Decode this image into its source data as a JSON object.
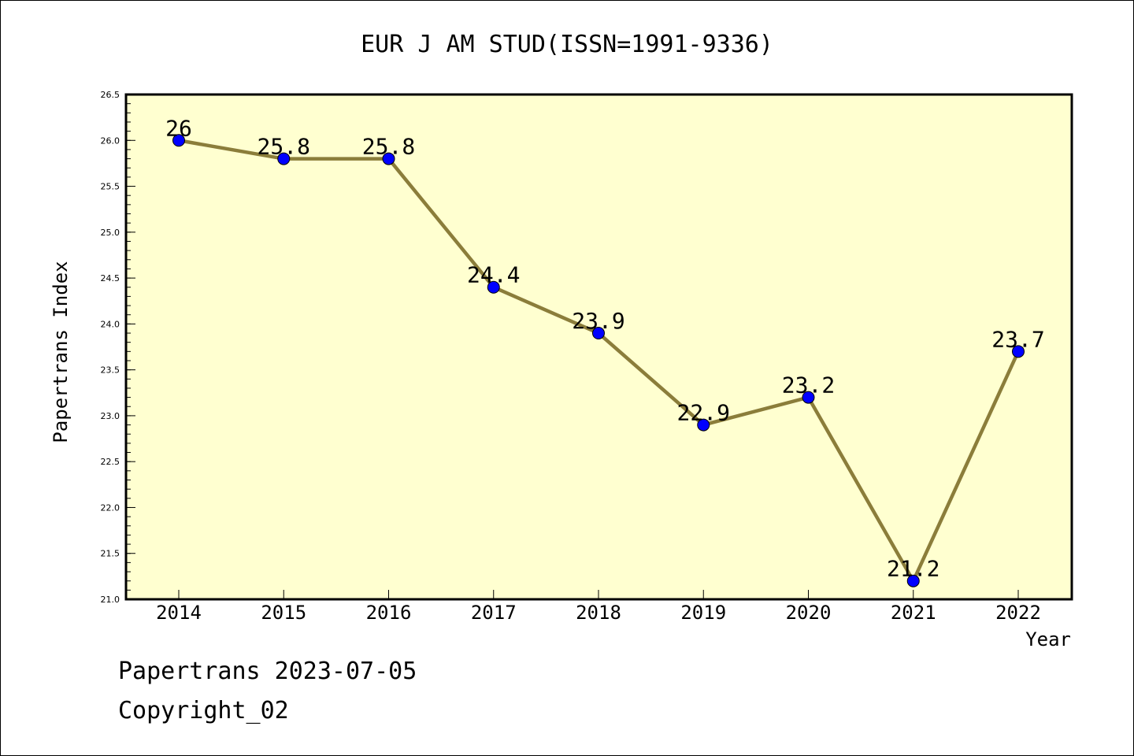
{
  "chart_data": {
    "type": "line",
    "title": "EUR J AM STUD(ISSN=1991-9336)",
    "xlabel": "Year",
    "ylabel": "Papertrans Index",
    "x": [
      "2014",
      "2015",
      "2016",
      "2017",
      "2018",
      "2019",
      "2020",
      "2021",
      "2022"
    ],
    "series": [
      {
        "values": [
          26,
          25.8,
          25.8,
          24.4,
          23.9,
          22.9,
          23.2,
          21.2,
          23.7
        ],
        "data_labels": [
          "26",
          "25.8",
          "25.8",
          "24.4",
          "23.9",
          "22.9",
          "23.2",
          "21.2",
          "23.7"
        ],
        "line_color": "#8b7d3a",
        "marker_color": "#0000ff"
      }
    ],
    "ylim": [
      21.0,
      26.5
    ],
    "yticks": [
      "21.0",
      "21.5",
      "22.0",
      "22.5",
      "23.0",
      "23.5",
      "24.0",
      "24.5",
      "25.0",
      "25.5",
      "26.0",
      "26.5"
    ],
    "grid": false,
    "plot_background": "#ffffd0"
  },
  "footer": {
    "line1": "Papertrans 2023-07-05",
    "line2": "Copyright_02"
  }
}
